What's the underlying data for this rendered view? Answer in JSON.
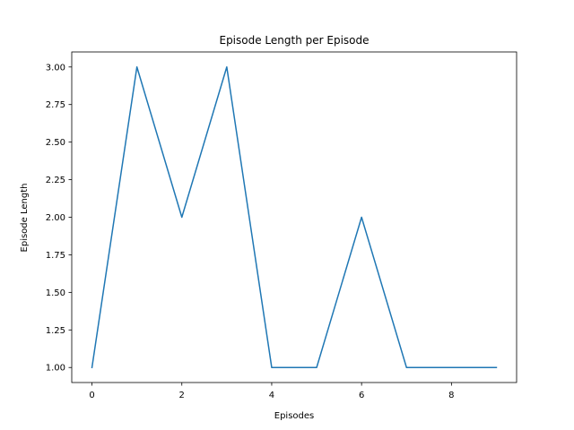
{
  "chart_data": {
    "type": "line",
    "title": "Episode Length per Episode",
    "xlabel": "Episodes",
    "ylabel": "Episode Length",
    "xlim": [
      -0.45,
      9.45
    ],
    "ylim": [
      0.9,
      3.1
    ],
    "xticks": [
      0,
      2,
      4,
      6,
      8
    ],
    "xtick_labels": [
      "0",
      "2",
      "4",
      "6",
      "8"
    ],
    "yticks": [
      1.0,
      1.25,
      1.5,
      1.75,
      2.0,
      2.25,
      2.5,
      2.75,
      3.0
    ],
    "ytick_labels": [
      "1.00",
      "1.25",
      "1.50",
      "1.75",
      "2.00",
      "2.25",
      "2.50",
      "2.75",
      "3.00"
    ],
    "grid": false,
    "legend": "none",
    "series": [
      {
        "color": "#1f77b4",
        "x": [
          0,
          1,
          2,
          3,
          4,
          5,
          6,
          7,
          8,
          9
        ],
        "y": [
          1,
          3,
          2,
          3,
          1,
          1,
          2,
          1,
          1,
          1
        ]
      }
    ]
  }
}
